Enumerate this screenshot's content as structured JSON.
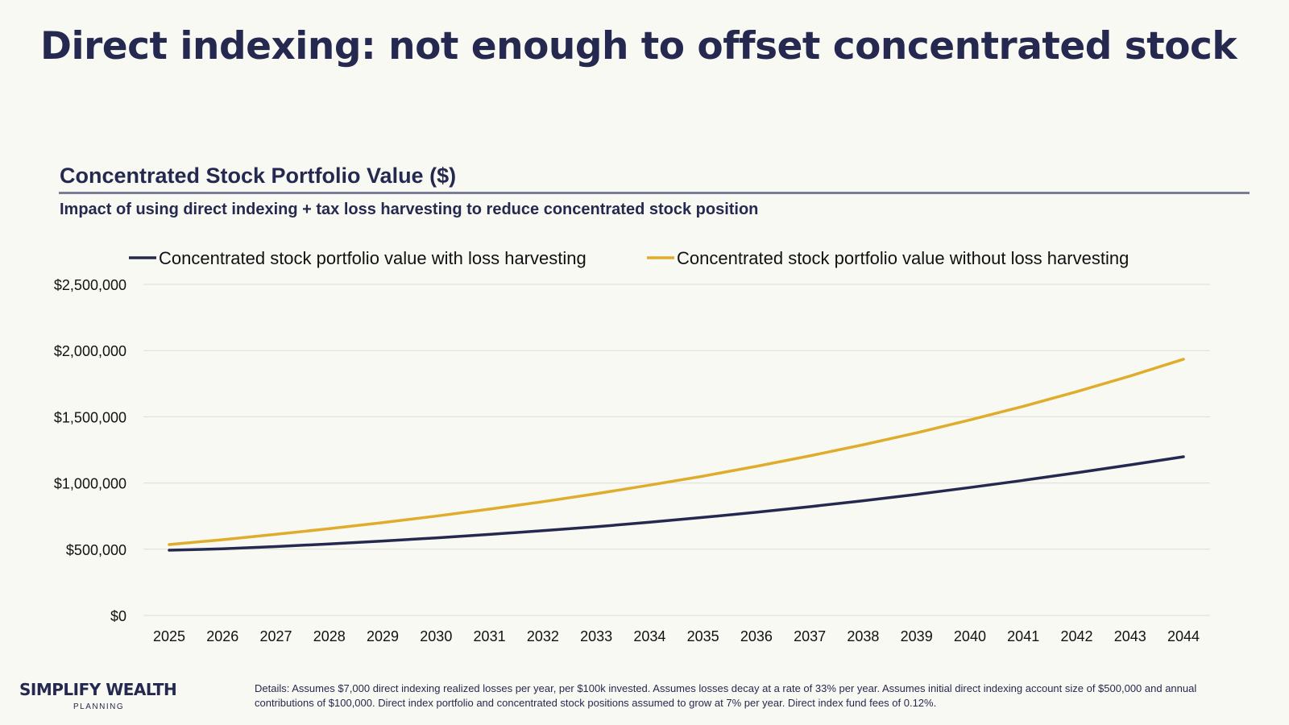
{
  "header": {
    "title": "Direct indexing: not enough to offset concentrated stock"
  },
  "chart_data": {
    "type": "line",
    "title": "Concentrated Stock Portfolio Value ($)",
    "subtitle": "Impact of using direct indexing + tax loss harvesting to reduce concentrated stock position",
    "xlabel": "",
    "ylabel": "",
    "ylim": [
      0,
      2500000
    ],
    "yticks": [
      {
        "v": 0,
        "label": "$0"
      },
      {
        "v": 500000,
        "label": "$500,000"
      },
      {
        "v": 1000000,
        "label": "$1,000,000"
      },
      {
        "v": 1500000,
        "label": "$1,500,000"
      },
      {
        "v": 2000000,
        "label": "$2,000,000"
      },
      {
        "v": 2500000,
        "label": "$2,500,000"
      }
    ],
    "grid": true,
    "legend_position": "top",
    "categories": [
      "2025",
      "2026",
      "2027",
      "2028",
      "2029",
      "2030",
      "2031",
      "2032",
      "2033",
      "2034",
      "2035",
      "2036",
      "2037",
      "2038",
      "2039",
      "2040",
      "2041",
      "2042",
      "2043",
      "2044"
    ],
    "series": [
      {
        "name": "Concentrated stock portfolio value with loss harvesting",
        "color": "#26294f",
        "values": [
          493000,
          503000,
          520000,
          540000,
          562000,
          586000,
          612000,
          640000,
          670000,
          704000,
          740000,
          779000,
          821000,
          866000,
          914000,
          966000,
          1020000,
          1077000,
          1137000,
          1198000
        ]
      },
      {
        "name": "Concentrated stock portfolio value without loss harvesting",
        "color": "#e0ac2b",
        "values": [
          535000,
          572000,
          613000,
          655000,
          701000,
          750000,
          803000,
          859000,
          919000,
          984000,
          1052000,
          1126000,
          1205000,
          1289000,
          1379000,
          1476000,
          1579000,
          1690000,
          1808000,
          1935000
        ]
      }
    ]
  },
  "footer": {
    "logo_main": "SIMPLIFY WEALTH",
    "logo_sub": "PLANNING",
    "details": "Details: Assumes $7,000 direct indexing realized losses per year, per $100k invested. Assumes losses decay at a rate of 33% per year. Assumes initial direct indexing account size of $500,000 and annual contributions of $100,000. Direct index portfolio and concentrated stock positions assumed to grow at 7% per year. Direct index fund fees of 0.12%."
  }
}
